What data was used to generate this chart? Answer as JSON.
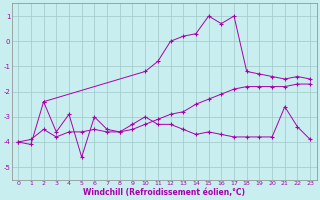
{
  "xlabel": "Windchill (Refroidissement éolien,°C)",
  "background_color": "#c8eef0",
  "grid_color": "#a0c8c8",
  "line_color": "#aa00aa",
  "xlim": [
    -0.5,
    23.5
  ],
  "ylim": [
    -5.5,
    1.5
  ],
  "xticks": [
    0,
    1,
    2,
    3,
    4,
    5,
    6,
    7,
    8,
    9,
    10,
    11,
    12,
    13,
    14,
    15,
    16,
    17,
    18,
    19,
    20,
    21,
    22,
    23
  ],
  "yticks": [
    -5,
    -4,
    -3,
    -2,
    -1,
    0,
    1
  ],
  "curve1_x": [
    0,
    1,
    2,
    3,
    4,
    5,
    6,
    7,
    8,
    9,
    10,
    11,
    12,
    13,
    14,
    15,
    16,
    17,
    18,
    19,
    20,
    21,
    22,
    23
  ],
  "curve1_y": [
    -4.0,
    -4.1,
    -2.4,
    -3.6,
    -2.9,
    -4.6,
    -3.0,
    -3.5,
    -3.6,
    -3.3,
    -3.0,
    -3.3,
    -3.3,
    -3.5,
    -3.7,
    -3.6,
    -3.7,
    -3.8,
    -3.8,
    -3.8,
    -3.8,
    -2.6,
    -3.4,
    -3.9
  ],
  "curve2_x": [
    2,
    10,
    11,
    12,
    13,
    14,
    15,
    16,
    17,
    18,
    19,
    20,
    21,
    22,
    23
  ],
  "curve2_y": [
    -2.4,
    -1.2,
    -0.8,
    0.0,
    0.2,
    0.3,
    1.0,
    0.7,
    1.0,
    -1.2,
    -1.3,
    -1.4,
    -1.5,
    -1.4,
    -1.5
  ],
  "curve3_x": [
    0,
    1,
    2,
    3,
    4,
    5,
    6,
    7,
    8,
    9,
    10,
    11,
    12,
    13,
    14,
    15,
    16,
    17,
    18,
    19,
    20,
    21,
    22,
    23
  ],
  "curve3_y": [
    -4.0,
    -3.9,
    -3.5,
    -3.8,
    -3.6,
    -3.6,
    -3.5,
    -3.6,
    -3.6,
    -3.5,
    -3.3,
    -3.1,
    -2.9,
    -2.8,
    -2.5,
    -2.3,
    -2.1,
    -1.9,
    -1.8,
    -1.8,
    -1.8,
    -1.8,
    -1.7,
    -1.7
  ]
}
